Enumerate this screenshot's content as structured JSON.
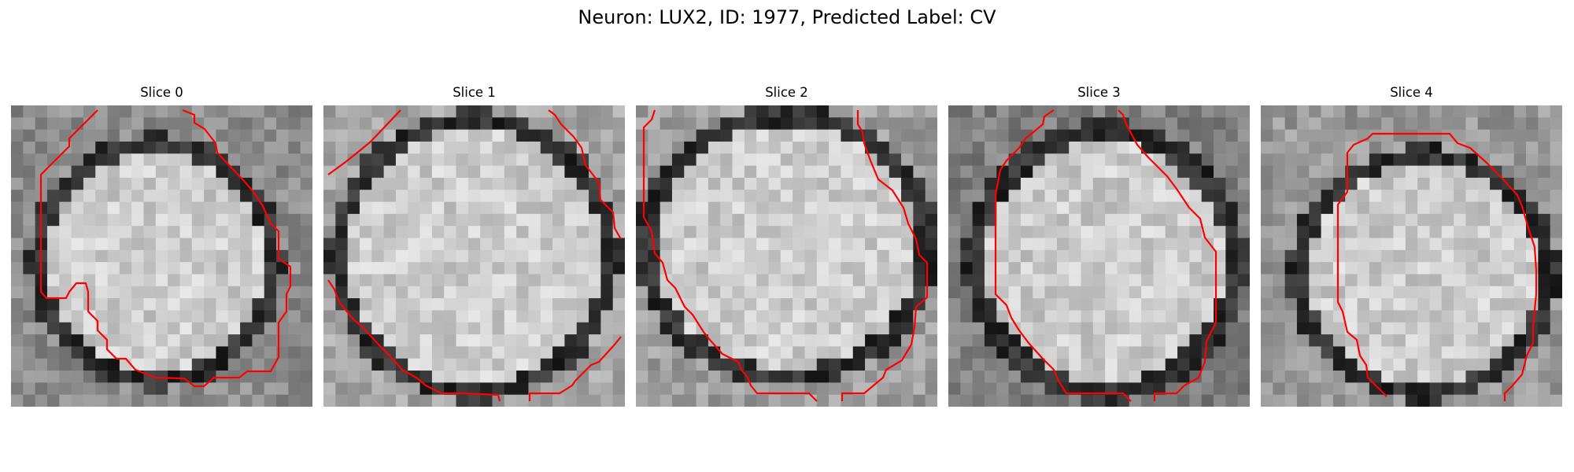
{
  "figure": {
    "title": "Neuron: LUX2, ID: 1977, Predicted Label: CV"
  },
  "panels": [
    {
      "title": "Slice 0"
    },
    {
      "title": "Slice 1"
    },
    {
      "title": "Slice 2"
    },
    {
      "title": "Slice 3"
    },
    {
      "title": "Slice 4"
    }
  ],
  "colors": {
    "contour": "#ff0000",
    "background": "#ffffff"
  }
}
